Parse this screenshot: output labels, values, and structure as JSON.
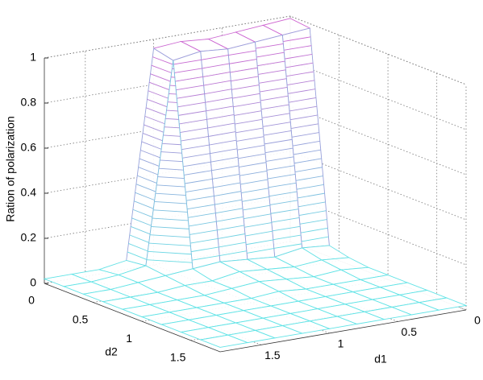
{
  "chart_data": {
    "type": "surface",
    "zlabel": "Ration of polarization",
    "xlabel": "d1",
    "ylabel": "d2",
    "x": [
      0,
      0.2,
      0.4,
      0.6,
      0.8,
      1.0,
      1.2,
      1.4,
      1.6,
      1.8
    ],
    "y": [
      0,
      0.2,
      0.4,
      0.6,
      0.8,
      1.0,
      1.2,
      1.4,
      1.6,
      1.8
    ],
    "z": [
      [
        0.99,
        0.98,
        0.97,
        0.96,
        0.97,
        0.96,
        0.04,
        0.02,
        0.02,
        0.02
      ],
      [
        0.98,
        0.97,
        0.96,
        0.95,
        0.96,
        0.94,
        0.05,
        0.03,
        0.02,
        0.02
      ],
      [
        0.05,
        0.06,
        0.04,
        0.05,
        0.06,
        0.05,
        0.04,
        0.03,
        0.02,
        0.02
      ],
      [
        0.03,
        0.04,
        0.03,
        0.04,
        0.05,
        0.03,
        0.03,
        0.02,
        0.02,
        0.02
      ],
      [
        0.02,
        0.03,
        0.02,
        0.03,
        0.04,
        0.03,
        0.02,
        0.02,
        0.02,
        0.02
      ],
      [
        0.02,
        0.02,
        0.02,
        0.02,
        0.03,
        0.02,
        0.02,
        0.02,
        0.02,
        0.02
      ],
      [
        0.02,
        0.02,
        0.02,
        0.02,
        0.02,
        0.02,
        0.02,
        0.02,
        0.02,
        0.02
      ],
      [
        0.02,
        0.02,
        0.02,
        0.02,
        0.02,
        0.02,
        0.02,
        0.02,
        0.02,
        0.02
      ],
      [
        0.02,
        0.02,
        0.02,
        0.02,
        0.02,
        0.02,
        0.02,
        0.02,
        0.02,
        0.02
      ],
      [
        0.02,
        0.02,
        0.02,
        0.02,
        0.02,
        0.02,
        0.02,
        0.02,
        0.02,
        0.02
      ]
    ],
    "xlim": [
      0,
      1.8
    ],
    "ylim": [
      0,
      1.8
    ],
    "zlim": [
      0,
      1
    ],
    "xticks": [
      0,
      0.5,
      1,
      1.5
    ],
    "yticks": [
      0,
      0.5,
      1,
      1.5
    ],
    "zticks": [
      0,
      0.2,
      0.4,
      0.6,
      0.8,
      1
    ],
    "grid": true,
    "colormap": [
      "#5fe6e6",
      "#d060d0"
    ]
  }
}
